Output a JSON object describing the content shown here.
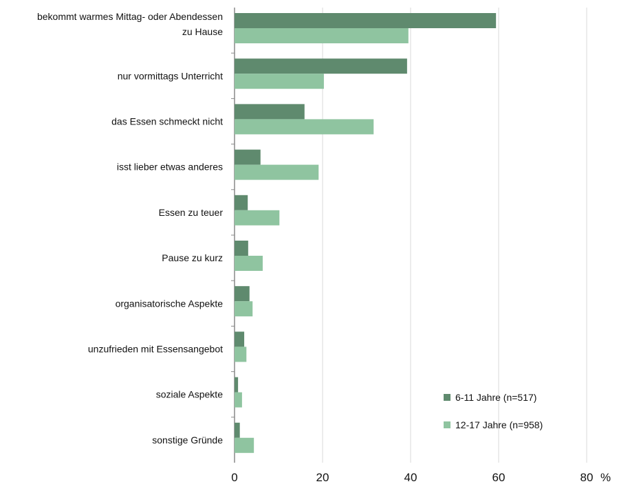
{
  "chart_data": {
    "type": "bar",
    "orientation": "horizontal",
    "categories": [
      [
        "bekommt warmes Mittag- oder Abendessen",
        "zu Hause"
      ],
      [
        "nur vormittags Unterricht"
      ],
      [
        "das Essen schmeckt nicht"
      ],
      [
        "isst lieber etwas anderes"
      ],
      [
        "Essen zu teuer"
      ],
      [
        "Pause zu kurz"
      ],
      [
        "organisatorische Aspekte"
      ],
      [
        "unzufrieden mit Essensangebot"
      ],
      [
        "soziale Aspekte"
      ],
      [
        "sonstige Gründe"
      ]
    ],
    "series": [
      {
        "name": "6-11 Jahre (n=517)",
        "color": "#5f8a6e",
        "values": [
          59.4,
          39.2,
          15.9,
          5.9,
          3.0,
          3.1,
          3.4,
          2.2,
          0.8,
          1.2
        ]
      },
      {
        "name": "12-17 Jahre (n=958)",
        "color": "#8fc4a0",
        "values": [
          39.5,
          20.3,
          31.6,
          19.1,
          10.2,
          6.4,
          4.1,
          2.7,
          1.7,
          4.4
        ]
      }
    ],
    "xlim": [
      0,
      80
    ],
    "xticks": [
      "0",
      "20",
      "40",
      "60",
      "80"
    ],
    "xunit": "%",
    "grid": true,
    "legend": "bottom-right"
  }
}
